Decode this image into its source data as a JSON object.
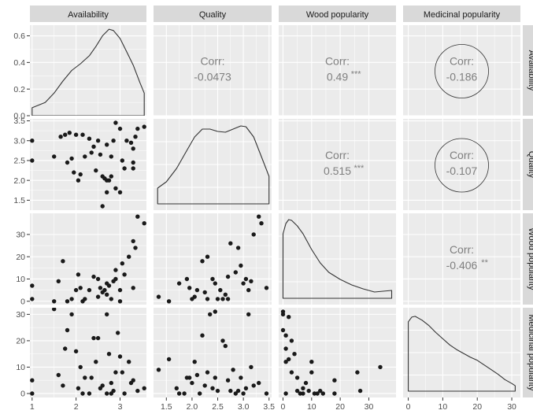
{
  "chart_data": {
    "type": "scatter-matrix",
    "variables": [
      "Availability",
      "Quality",
      "Wood popularity",
      "Medicinal popularity"
    ],
    "axes": {
      "Availability": {
        "range": [
          0.95,
          3.6
        ],
        "ticks": [
          1,
          2,
          3
        ],
        "density_ticks": [
          0.0,
          0.2,
          0.4,
          0.6
        ],
        "density_labels": [
          "0.0",
          "0.2",
          "0.4",
          "0.6"
        ],
        "density_range": [
          0,
          0.68
        ]
      },
      "Quality": {
        "range": [
          1.25,
          3.55
        ],
        "ticks": [
          1.5,
          2.0,
          2.5,
          3.0,
          3.5
        ],
        "tick_labels": [
          "1.5",
          "2.0",
          "2.5",
          "3.0",
          "3.5"
        ]
      },
      "Wood popularity": {
        "range": [
          -1.5,
          39.5
        ],
        "ticks": [
          0,
          10,
          20,
          30
        ]
      },
      "Medicinal popularity": {
        "range": [
          -1.5,
          32.5
        ],
        "ticks": [
          0,
          10,
          20,
          30
        ]
      }
    },
    "correlations": [
      {
        "row": "Availability",
        "col": "Quality",
        "label": "Corr:",
        "value": "-0.0473",
        "stars": "",
        "circled": false
      },
      {
        "row": "Availability",
        "col": "Wood popularity",
        "label": "Corr:",
        "value": "0.49",
        "stars": "***",
        "circled": false
      },
      {
        "row": "Availability",
        "col": "Medicinal popularity",
        "label": "Corr:",
        "value": "-0.186",
        "stars": "",
        "circled": true
      },
      {
        "row": "Quality",
        "col": "Wood popularity",
        "label": "Corr:",
        "value": "0.515",
        "stars": "***",
        "circled": false
      },
      {
        "row": "Quality",
        "col": "Medicinal popularity",
        "label": "Corr:",
        "value": "-0.107",
        "stars": "",
        "circled": true
      },
      {
        "row": "Wood popularity",
        "col": "Medicinal popularity",
        "label": "Corr:",
        "value": "-0.406",
        "stars": "**",
        "circled": false
      }
    ],
    "densities": {
      "Availability": [
        [
          1.0,
          0.06
        ],
        [
          1.15,
          0.08
        ],
        [
          1.3,
          0.1
        ],
        [
          1.5,
          0.17
        ],
        [
          1.7,
          0.26
        ],
        [
          1.9,
          0.34
        ],
        [
          2.1,
          0.39
        ],
        [
          2.3,
          0.45
        ],
        [
          2.45,
          0.52
        ],
        [
          2.6,
          0.6
        ],
        [
          2.75,
          0.65
        ],
        [
          2.85,
          0.64
        ],
        [
          3.0,
          0.58
        ],
        [
          3.15,
          0.48
        ],
        [
          3.3,
          0.38
        ],
        [
          3.45,
          0.25
        ],
        [
          3.55,
          0.17
        ]
      ],
      "Quality": [
        [
          1.33,
          0.2
        ],
        [
          1.5,
          0.28
        ],
        [
          1.7,
          0.45
        ],
        [
          1.9,
          0.68
        ],
        [
          2.05,
          0.85
        ],
        [
          2.2,
          0.95
        ],
        [
          2.35,
          0.95
        ],
        [
          2.5,
          0.92
        ],
        [
          2.65,
          0.91
        ],
        [
          2.8,
          0.95
        ],
        [
          2.95,
          0.99
        ],
        [
          3.05,
          0.98
        ],
        [
          3.2,
          0.85
        ],
        [
          3.35,
          0.6
        ],
        [
          3.5,
          0.35
        ]
      ],
      "Wood popularity": [
        [
          0,
          0.82
        ],
        [
          1,
          0.95
        ],
        [
          2,
          1.0
        ],
        [
          3,
          0.99
        ],
        [
          5,
          0.92
        ],
        [
          7,
          0.82
        ],
        [
          10,
          0.62
        ],
        [
          13,
          0.45
        ],
        [
          16,
          0.33
        ],
        [
          20,
          0.24
        ],
        [
          24,
          0.17
        ],
        [
          28,
          0.12
        ],
        [
          32,
          0.08
        ],
        [
          35,
          0.09
        ],
        [
          38,
          0.1
        ]
      ],
      "Medicinal popularity": [
        [
          0,
          0.9
        ],
        [
          1,
          0.96
        ],
        [
          2,
          0.97
        ],
        [
          4,
          0.92
        ],
        [
          6,
          0.85
        ],
        [
          8,
          0.76
        ],
        [
          10,
          0.68
        ],
        [
          12,
          0.6
        ],
        [
          14,
          0.54
        ],
        [
          16,
          0.49
        ],
        [
          18,
          0.44
        ],
        [
          20,
          0.4
        ],
        [
          22,
          0.34
        ],
        [
          24,
          0.28
        ],
        [
          26,
          0.22
        ],
        [
          28,
          0.15
        ],
        [
          30,
          0.1
        ],
        [
          31,
          0.07
        ]
      ]
    },
    "scatter": {
      "Quality_vs_Availability": [
        [
          1.0,
          3.0
        ],
        [
          1.0,
          2.5
        ],
        [
          1.5,
          2.6
        ],
        [
          1.65,
          3.1
        ],
        [
          1.75,
          3.15
        ],
        [
          1.8,
          2.45
        ],
        [
          1.9,
          2.55
        ],
        [
          1.85,
          3.2
        ],
        [
          1.95,
          2.2
        ],
        [
          2.0,
          3.15
        ],
        [
          2.05,
          2.0
        ],
        [
          2.1,
          2.15
        ],
        [
          2.15,
          3.15
        ],
        [
          2.2,
          2.6
        ],
        [
          2.3,
          3.05
        ],
        [
          2.35,
          2.7
        ],
        [
          2.4,
          2.85
        ],
        [
          2.45,
          2.25
        ],
        [
          2.5,
          3.0
        ],
        [
          2.55,
          2.65
        ],
        [
          2.6,
          2.1
        ],
        [
          2.65,
          2.05
        ],
        [
          2.7,
          2.0
        ],
        [
          2.75,
          2.0
        ],
        [
          2.7,
          1.7
        ],
        [
          2.6,
          1.35
        ],
        [
          2.7,
          2.9
        ],
        [
          2.8,
          2.6
        ],
        [
          2.85,
          3.0
        ],
        [
          2.8,
          2.1
        ],
        [
          2.9,
          1.8
        ],
        [
          2.9,
          3.45
        ],
        [
          3.0,
          3.3
        ],
        [
          3.0,
          1.7
        ],
        [
          3.05,
          2.5
        ],
        [
          3.1,
          2.3
        ],
        [
          3.15,
          3.0
        ],
        [
          3.25,
          2.95
        ],
        [
          3.3,
          2.3
        ],
        [
          3.3,
          2.45
        ],
        [
          3.35,
          3.1
        ],
        [
          3.3,
          2.8
        ],
        [
          3.4,
          3.3
        ],
        [
          3.55,
          3.35
        ]
      ],
      "Wood_vs_Availability": [
        [
          1.0,
          7
        ],
        [
          1.0,
          1
        ],
        [
          1.5,
          0
        ],
        [
          1.6,
          9
        ],
        [
          1.7,
          18
        ],
        [
          1.8,
          0
        ],
        [
          1.9,
          1
        ],
        [
          2.0,
          5
        ],
        [
          2.1,
          6
        ],
        [
          2.2,
          1
        ],
        [
          2.3,
          5
        ],
        [
          2.4,
          11
        ],
        [
          2.5,
          10
        ],
        [
          2.5,
          2
        ],
        [
          2.55,
          6
        ],
        [
          2.6,
          4
        ],
        [
          2.65,
          5
        ],
        [
          2.7,
          3
        ],
        [
          2.7,
          8
        ],
        [
          2.75,
          7
        ],
        [
          2.8,
          1
        ],
        [
          2.85,
          9
        ],
        [
          2.9,
          10
        ],
        [
          2.9,
          14
        ],
        [
          3.0,
          5
        ],
        [
          3.0,
          0
        ],
        [
          3.05,
          17
        ],
        [
          3.1,
          12
        ],
        [
          3.2,
          20
        ],
        [
          3.3,
          6
        ],
        [
          3.3,
          27
        ],
        [
          3.35,
          24
        ],
        [
          3.4,
          38
        ],
        [
          3.55,
          35
        ],
        [
          2.05,
          12
        ],
        [
          2.15,
          0
        ]
      ],
      "Wood_vs_Quality": [
        [
          1.35,
          2
        ],
        [
          1.55,
          0
        ],
        [
          1.75,
          8
        ],
        [
          1.9,
          10
        ],
        [
          1.95,
          6
        ],
        [
          2.0,
          1
        ],
        [
          2.05,
          2
        ],
        [
          2.1,
          5
        ],
        [
          2.2,
          18
        ],
        [
          2.25,
          4
        ],
        [
          2.3,
          1
        ],
        [
          2.4,
          10
        ],
        [
          2.45,
          8
        ],
        [
          2.5,
          1
        ],
        [
          2.55,
          5
        ],
        [
          2.6,
          1
        ],
        [
          2.65,
          3
        ],
        [
          2.7,
          1
        ],
        [
          2.7,
          11
        ],
        [
          2.75,
          26
        ],
        [
          2.85,
          13
        ],
        [
          2.9,
          24
        ],
        [
          2.95,
          16
        ],
        [
          3.0,
          8
        ],
        [
          3.05,
          10
        ],
        [
          3.1,
          5
        ],
        [
          3.15,
          9
        ],
        [
          3.2,
          30
        ],
        [
          3.3,
          38
        ],
        [
          3.35,
          35
        ],
        [
          3.45,
          6
        ],
        [
          2.3,
          20
        ]
      ],
      "Medicinal_vs_Availability": [
        [
          1.0,
          0
        ],
        [
          1.0,
          5
        ],
        [
          1.5,
          32
        ],
        [
          1.6,
          7
        ],
        [
          1.7,
          3
        ],
        [
          1.75,
          17
        ],
        [
          1.8,
          24
        ],
        [
          1.9,
          30
        ],
        [
          2.0,
          16
        ],
        [
          2.05,
          2
        ],
        [
          2.15,
          0
        ],
        [
          2.2,
          6
        ],
        [
          2.3,
          0
        ],
        [
          2.35,
          6
        ],
        [
          2.4,
          21
        ],
        [
          2.5,
          21
        ],
        [
          2.55,
          2
        ],
        [
          2.6,
          3
        ],
        [
          2.7,
          0
        ],
        [
          2.7,
          30
        ],
        [
          2.75,
          15
        ],
        [
          2.8,
          4
        ],
        [
          2.8,
          0
        ],
        [
          2.85,
          1
        ],
        [
          2.9,
          8
        ],
        [
          2.95,
          23
        ],
        [
          3.0,
          14
        ],
        [
          3.05,
          8
        ],
        [
          3.1,
          0
        ],
        [
          3.2,
          12
        ],
        [
          3.25,
          4
        ],
        [
          3.3,
          5
        ],
        [
          3.4,
          1
        ],
        [
          3.55,
          2
        ],
        [
          2.1,
          10
        ],
        [
          2.45,
          12
        ]
      ],
      "Medicinal_vs_Quality": [
        [
          1.35,
          9
        ],
        [
          1.55,
          13
        ],
        [
          1.7,
          2
        ],
        [
          1.75,
          0
        ],
        [
          1.85,
          0
        ],
        [
          1.9,
          6
        ],
        [
          1.95,
          6
        ],
        [
          2.0,
          4
        ],
        [
          2.05,
          12
        ],
        [
          2.1,
          7
        ],
        [
          2.15,
          0
        ],
        [
          2.2,
          22
        ],
        [
          2.25,
          3
        ],
        [
          2.3,
          8
        ],
        [
          2.35,
          30
        ],
        [
          2.4,
          2
        ],
        [
          2.45,
          6
        ],
        [
          2.5,
          1
        ],
        [
          2.6,
          20
        ],
        [
          2.65,
          18
        ],
        [
          2.7,
          5
        ],
        [
          2.75,
          1
        ],
        [
          2.8,
          9
        ],
        [
          2.85,
          0
        ],
        [
          2.9,
          1
        ],
        [
          2.95,
          6
        ],
        [
          3.0,
          0
        ],
        [
          3.05,
          2
        ],
        [
          3.1,
          30
        ],
        [
          3.15,
          10
        ],
        [
          3.2,
          3
        ],
        [
          3.3,
          4
        ],
        [
          3.45,
          0
        ],
        [
          2.45,
          31
        ]
      ],
      "Medicinal_vs_Wood": [
        [
          0,
          31
        ],
        [
          0,
          30
        ],
        [
          0,
          24
        ],
        [
          1,
          22
        ],
        [
          1,
          17
        ],
        [
          1,
          12
        ],
        [
          2,
          29
        ],
        [
          2,
          13
        ],
        [
          3,
          8
        ],
        [
          3,
          20
        ],
        [
          4,
          15
        ],
        [
          5,
          6
        ],
        [
          5,
          1
        ],
        [
          6,
          0
        ],
        [
          7,
          2
        ],
        [
          7,
          0
        ],
        [
          8,
          4
        ],
        [
          9,
          1
        ],
        [
          10,
          12
        ],
        [
          10,
          8
        ],
        [
          11,
          0
        ],
        [
          12,
          0
        ],
        [
          13,
          1
        ],
        [
          18,
          5
        ],
        [
          18,
          0
        ],
        [
          26,
          8
        ],
        [
          27,
          1
        ],
        [
          34,
          10
        ],
        [
          14,
          0
        ],
        [
          1,
          0
        ]
      ]
    }
  }
}
